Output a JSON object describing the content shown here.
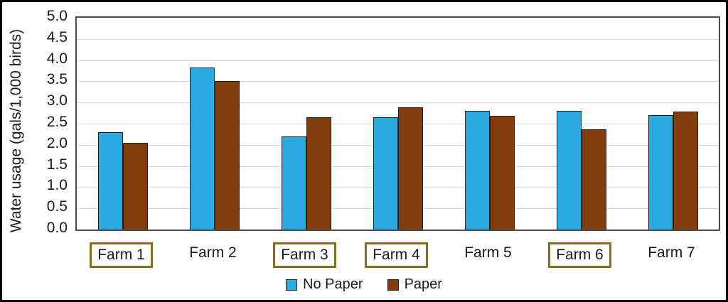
{
  "chart_data": {
    "type": "bar",
    "title": "",
    "xlabel": "",
    "ylabel": "Water usage (gals/1,000 birds)",
    "ylim": [
      0,
      5
    ],
    "ytick_step": 0.5,
    "ytick_labels": [
      "5.0",
      "4.5",
      "4.0",
      "3.5",
      "3.0",
      "2.5",
      "2.0",
      "1.5",
      "1.0",
      "0.5",
      "0.0"
    ],
    "grid": true,
    "legend_position": "bottom",
    "categories": [
      "Farm 1",
      "Farm 2",
      "Farm 3",
      "Farm 4",
      "Farm 5",
      "Farm 6",
      "Farm 7"
    ],
    "boxed_categories": [
      "Farm 1",
      "Farm 3",
      "Farm 4",
      "Farm 6"
    ],
    "series": [
      {
        "name": "No Paper",
        "color": "#29abe2",
        "values": [
          2.3,
          3.83,
          2.2,
          2.65,
          2.8,
          2.8,
          2.7
        ]
      },
      {
        "name": "Paper",
        "color": "#833c0b",
        "values": [
          2.05,
          3.5,
          2.65,
          2.88,
          2.68,
          2.36,
          2.78
        ]
      }
    ]
  },
  "colors": {
    "gridline": "#d9d9d9",
    "plot_border": "#4d4d4d",
    "outer_border": "#000000",
    "label_box_border": "#8a6d20",
    "text": "#1a1a1a"
  }
}
